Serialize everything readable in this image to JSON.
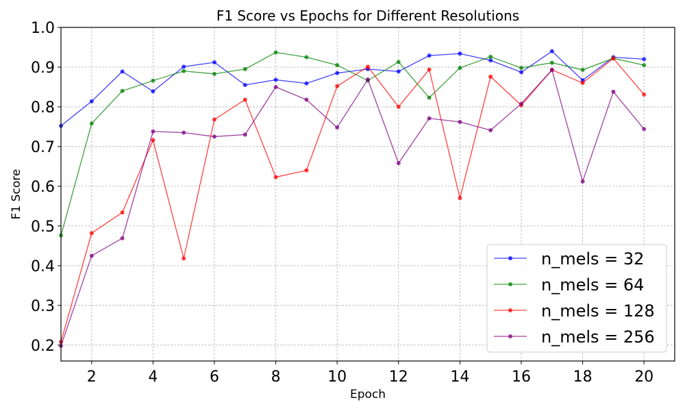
{
  "chart_data": {
    "type": "line",
    "title": "F1 Score vs Epochs for Different Resolutions",
    "xlabel": "Epoch",
    "ylabel": "F1 Score",
    "xlim": [
      1,
      21
    ],
    "ylim": [
      0.16,
      1.0
    ],
    "x_ticks": [
      2,
      4,
      6,
      8,
      10,
      12,
      14,
      16,
      18,
      20
    ],
    "y_ticks": [
      0.2,
      0.3,
      0.4,
      0.5,
      0.6,
      0.7,
      0.8,
      0.9,
      1.0
    ],
    "grid": true,
    "legend_position": "lower-right",
    "x": [
      1,
      2,
      3,
      4,
      5,
      6,
      7,
      8,
      9,
      10,
      11,
      12,
      13,
      14,
      15,
      16,
      17,
      18,
      19,
      20
    ],
    "series": [
      {
        "name": "n_mels = 32",
        "color": "#0000ff",
        "values": [
          0.752,
          0.814,
          0.889,
          0.839,
          0.901,
          0.912,
          0.855,
          0.868,
          0.859,
          0.885,
          0.895,
          0.889,
          0.929,
          0.934,
          0.917,
          0.887,
          0.94,
          0.867,
          0.925,
          0.92
        ]
      },
      {
        "name": "n_mels = 64",
        "color": "#008000",
        "values": [
          0.476,
          0.758,
          0.84,
          0.866,
          0.89,
          0.883,
          0.895,
          0.937,
          0.925,
          0.905,
          0.866,
          0.913,
          0.823,
          0.898,
          0.926,
          0.898,
          0.911,
          0.893,
          0.922,
          0.905
        ]
      },
      {
        "name": "n_mels = 128",
        "color": "#ff0000",
        "values": [
          0.208,
          0.482,
          0.534,
          0.716,
          0.418,
          0.768,
          0.818,
          0.623,
          0.64,
          0.852,
          0.901,
          0.8,
          0.894,
          0.57,
          0.876,
          0.804,
          0.893,
          0.86,
          0.922,
          0.831
        ]
      },
      {
        "name": "n_mels = 256",
        "color": "#800080",
        "values": [
          0.198,
          0.425,
          0.469,
          0.738,
          0.735,
          0.725,
          0.73,
          0.85,
          0.818,
          0.748,
          0.869,
          0.658,
          0.771,
          0.762,
          0.741,
          0.808,
          0.893,
          0.612,
          0.838,
          0.744
        ]
      }
    ]
  }
}
